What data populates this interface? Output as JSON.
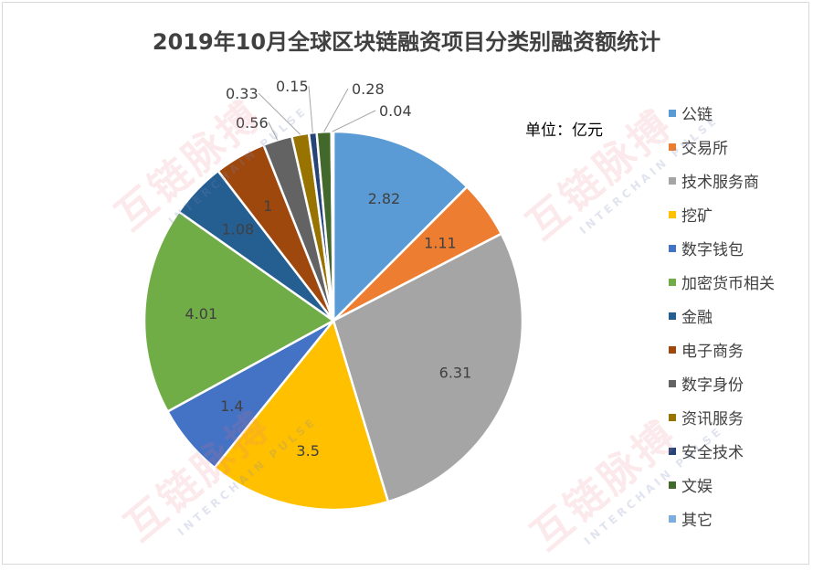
{
  "chart_data": {
    "type": "pie",
    "title": "2019年10月全球区块链融资项目分类别融资额统计",
    "unit_label": "单位：亿元",
    "categories": [
      "公链",
      "交易所",
      "技术服务商",
      "挖矿",
      "数字钱包",
      "加密货币相关",
      "金融",
      "电子商务",
      "数字身份",
      "资讯服务",
      "安全技术",
      "文娱",
      "其它"
    ],
    "values": [
      2.82,
      1.11,
      6.31,
      3.5,
      1.4,
      4.01,
      1.08,
      1,
      0.56,
      0.33,
      0.15,
      0.28,
      0.04
    ],
    "value_labels": [
      "2.82",
      "1.11",
      "6.31",
      "3.5",
      "1.4",
      "4.01",
      "1.08",
      "1",
      "0.56",
      "0.33",
      "0.15",
      "0.28",
      "0.04"
    ],
    "colors": [
      "#5b9bd5",
      "#ed7d31",
      "#a5a5a5",
      "#ffc000",
      "#4472c4",
      "#70ad47",
      "#255e91",
      "#9e480e",
      "#636363",
      "#997300",
      "#264478",
      "#43682b",
      "#7cafdd"
    ],
    "legend_position": "right"
  },
  "watermark": {
    "text": "互链脉搏",
    "subtext": "INTERCHAIN PULSE"
  }
}
